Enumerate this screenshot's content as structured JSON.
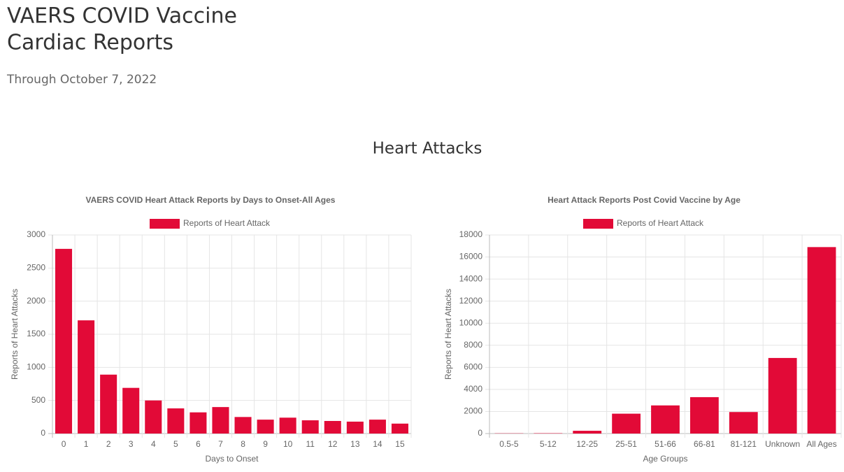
{
  "header": {
    "title_line1": "VAERS COVID Vaccine",
    "title_line2": "Cardiac Reports",
    "subtitle": "Through October 7, 2022"
  },
  "section": {
    "title": "Heart Attacks"
  },
  "chart_data": [
    {
      "type": "bar",
      "title": "VAERS COVID Heart Attack Reports by Days to Onset-All Ages",
      "x_label": "Days to Onset",
      "y_label": "Reports of Heart Attacks",
      "categories": [
        "0",
        "1",
        "2",
        "3",
        "4",
        "5",
        "6",
        "7",
        "8",
        "9",
        "10",
        "11",
        "12",
        "13",
        "14",
        "15"
      ],
      "series": [
        {
          "name": "Reports of Heart Attack",
          "color": "#e20a37",
          "values": [
            2790,
            1710,
            890,
            690,
            500,
            380,
            320,
            400,
            250,
            210,
            240,
            200,
            190,
            180,
            210,
            150
          ]
        }
      ],
      "ylim": [
        0,
        3000
      ],
      "yticks": [
        0,
        500,
        1000,
        1500,
        2000,
        2500,
        3000
      ],
      "grid": true,
      "legend": "top"
    },
    {
      "type": "bar",
      "title": "Heart Attack Reports Post Covid Vaccine by Age",
      "x_label": "Age Groups",
      "y_label": "Reports of Heart Attacks",
      "categories": [
        "0.5-5",
        "5-12",
        "12-25",
        "25-51",
        "51-66",
        "66-81",
        "81-121",
        "Unknown",
        "All Ages"
      ],
      "series": [
        {
          "name": "Reports of Heart Attack",
          "color": "#e20a37",
          "values": [
            20,
            30,
            250,
            1800,
            2550,
            3300,
            1950,
            6850,
            16900
          ]
        }
      ],
      "ylim": [
        0,
        18000
      ],
      "yticks": [
        0,
        2000,
        4000,
        6000,
        8000,
        10000,
        12000,
        14000,
        16000,
        18000
      ],
      "grid": true,
      "legend": "top"
    }
  ]
}
